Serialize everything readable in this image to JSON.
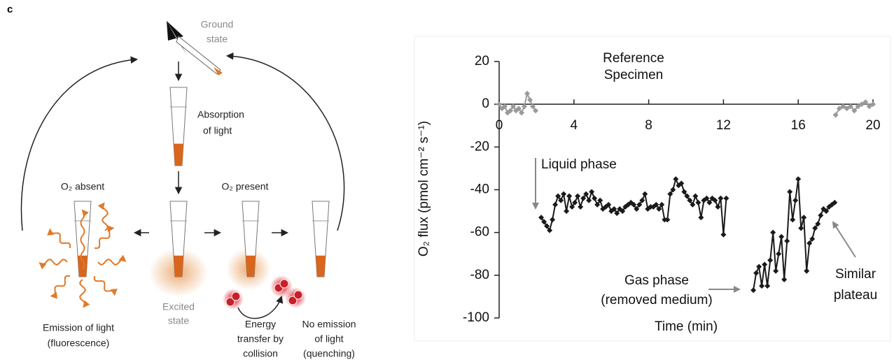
{
  "panel_label": "c",
  "diagram": {
    "ground_state": [
      "Ground",
      "state"
    ],
    "absorption": [
      "Absorption",
      "of light"
    ],
    "o2_absent": "O₂ absent",
    "o2_present": "O₂ present",
    "excited_state": [
      "Excited",
      "state"
    ],
    "emission": [
      "Emission of light",
      "(fluorescence)"
    ],
    "energy_transfer": [
      "Energy",
      "transfer by",
      "collision"
    ],
    "no_emission": [
      "No emission",
      "of light",
      "(quenching)"
    ]
  },
  "chart_data": {
    "type": "line",
    "xlabel": "Time (min)",
    "ylabel": "O₂ flux (pmol cm⁻² s⁻¹)",
    "xlim": [
      0,
      20
    ],
    "xticks": [
      0,
      4,
      8,
      12,
      16,
      20
    ],
    "ylim": [
      -100,
      20
    ],
    "yticks": [
      20,
      0,
      -20,
      -40,
      -60,
      -80,
      -100
    ],
    "annotations": {
      "liquid": "Liquid phase",
      "gas": [
        "Gas phase",
        "(removed medium)"
      ],
      "plateau": [
        "Similar",
        "plateau"
      ]
    },
    "series": [
      {
        "name": "Reference",
        "color": "#9a9a9a",
        "x": [
          0,
          0.15,
          0.3,
          0.45,
          0.6,
          0.75,
          0.9,
          1.05,
          1.2,
          1.35,
          1.5,
          1.65,
          1.8,
          1.95,
          null,
          18.0,
          18.2,
          18.4,
          18.6,
          18.8,
          19.0,
          19.2,
          19.4,
          19.6,
          19.8,
          20.0
        ],
        "values": [
          0,
          -2,
          -1,
          -4,
          -3,
          -1,
          -3,
          -2,
          -4,
          -1,
          5,
          2,
          -1,
          -3,
          null,
          -5,
          -2,
          -1,
          -2,
          -1,
          -3,
          -1,
          0,
          1,
          -1,
          0
        ]
      },
      {
        "name": "Specimen",
        "color": "#1a1a1a",
        "x": [
          2.25,
          2.4,
          2.55,
          2.7,
          2.85,
          3.0,
          3.15,
          3.3,
          3.45,
          3.6,
          3.75,
          3.9,
          4.05,
          4.2,
          4.35,
          4.5,
          4.65,
          4.8,
          4.95,
          5.1,
          5.25,
          5.4,
          5.55,
          5.7,
          5.85,
          6.0,
          6.15,
          6.3,
          6.45,
          6.6,
          6.75,
          6.9,
          7.05,
          7.2,
          7.35,
          7.5,
          7.65,
          7.8,
          7.95,
          8.1,
          8.25,
          8.4,
          8.55,
          8.7,
          8.85,
          9.0,
          9.15,
          9.3,
          9.45,
          9.6,
          9.75,
          9.9,
          10.05,
          10.2,
          10.35,
          10.5,
          10.65,
          10.8,
          10.95,
          11.1,
          11.25,
          11.4,
          11.55,
          11.7,
          11.85,
          12.0,
          12.15,
          null,
          13.6,
          13.75,
          13.9,
          14.05,
          14.2,
          14.35,
          14.5,
          14.65,
          14.8,
          14.95,
          15.1,
          15.25,
          15.4,
          15.55,
          15.7,
          15.85,
          16.0,
          16.15,
          16.3,
          16.45,
          16.6,
          16.75,
          16.9,
          17.05,
          17.2,
          17.35,
          17.5,
          17.65,
          17.8,
          17.95
        ],
        "values": [
          -53,
          -55,
          -57,
          -59,
          -54,
          -47,
          -43,
          -45,
          -42,
          -50,
          -43,
          -48,
          -46,
          -43,
          -48,
          -44,
          -42,
          -45,
          -41,
          -44,
          -47,
          -45,
          -49,
          -48,
          -47,
          -50,
          -49,
          -51,
          -49,
          -50,
          -48,
          -47,
          -46,
          -47,
          -49,
          -47,
          -45,
          -42,
          -49,
          -48,
          -48,
          -47,
          -49,
          -47,
          -54,
          -54,
          -42,
          -40,
          -35,
          -38,
          -37,
          -41,
          -43,
          -45,
          -47,
          -43,
          -46,
          -53,
          -45,
          -44,
          -46,
          -44,
          -45,
          -48,
          -44,
          -61,
          -44,
          null,
          -87,
          -79,
          -76,
          -85,
          -75,
          -85,
          -73,
          -60,
          -78,
          -70,
          -62,
          -82,
          -64,
          -41,
          -54,
          -45,
          -35,
          -58,
          -53,
          -78,
          -65,
          -63,
          -58,
          -56,
          -52,
          -49,
          -50,
          -48,
          -47,
          -46
        ]
      }
    ]
  }
}
